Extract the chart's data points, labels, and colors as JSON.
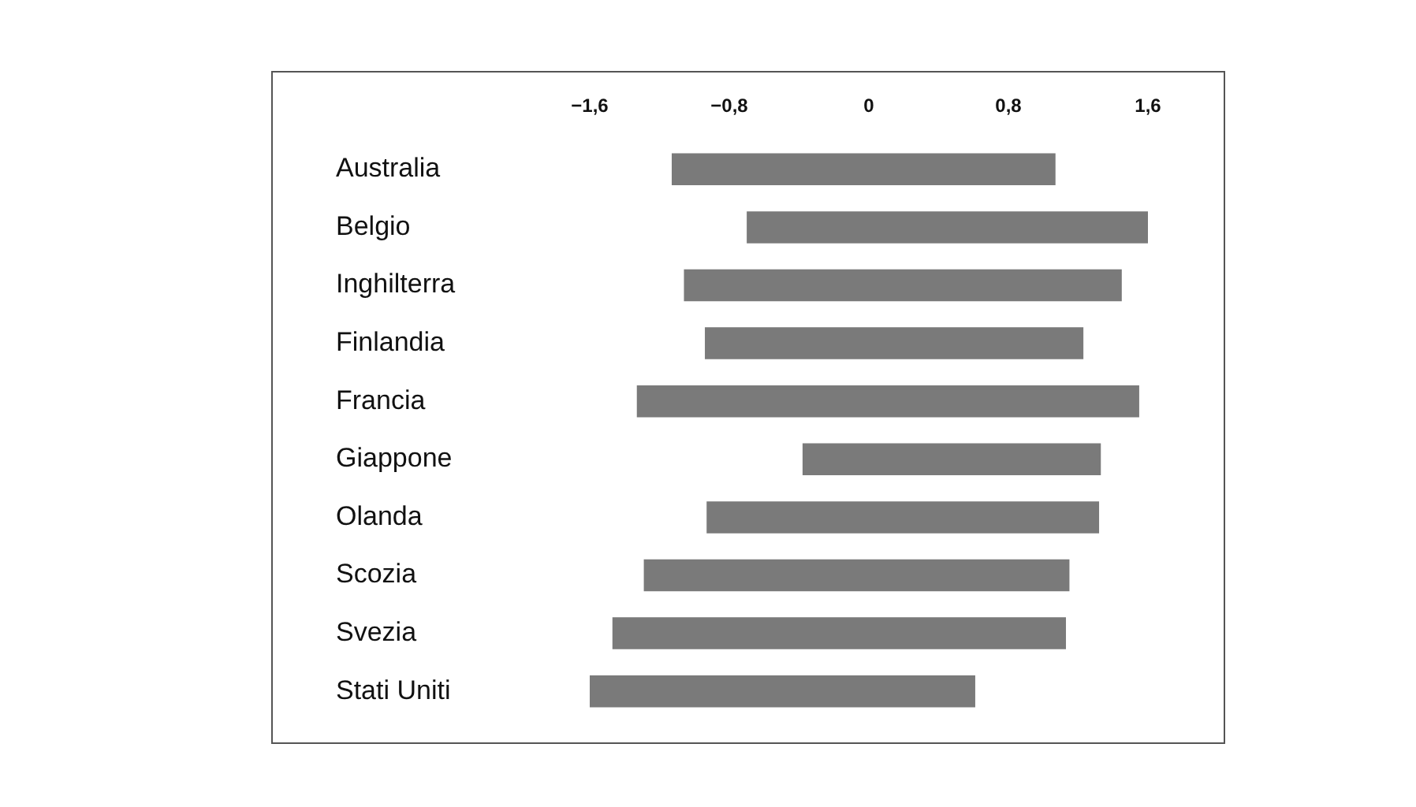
{
  "chart_data": {
    "type": "bar",
    "orientation": "horizontal",
    "categories": [
      "Australia",
      "Belgio",
      "Inghilterra",
      "Finlandia",
      "Francia",
      "Giappone",
      "Olanda",
      "Scozia",
      "Svezia",
      "Stati Uniti"
    ],
    "base": [
      -1.13,
      -0.7,
      -1.06,
      -0.94,
      -1.33,
      -0.38,
      -0.93,
      -1.29,
      -1.47,
      -1.6
    ],
    "values": [
      2.2,
      2.3,
      2.51,
      2.17,
      2.88,
      1.71,
      2.25,
      2.44,
      2.6,
      2.21
    ],
    "color": "#7a7a7a",
    "xlim": [
      -1.6,
      1.6
    ],
    "xticks": [
      {
        "value": -1.6,
        "label": "−1,6"
      },
      {
        "value": -0.8,
        "label": "−0,8"
      },
      {
        "value": 0,
        "label": "0"
      },
      {
        "value": 0.8,
        "label": "0,8"
      },
      {
        "value": 1.6,
        "label": "1,6"
      }
    ],
    "grid": false,
    "legend": false
  }
}
